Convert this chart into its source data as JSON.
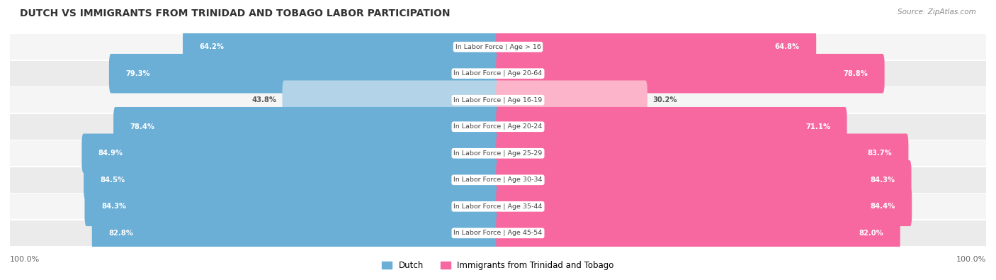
{
  "title": "DUTCH VS IMMIGRANTS FROM TRINIDAD AND TOBAGO LABOR PARTICIPATION",
  "source": "Source: ZipAtlas.com",
  "categories": [
    "In Labor Force | Age > 16",
    "In Labor Force | Age 20-64",
    "In Labor Force | Age 16-19",
    "In Labor Force | Age 20-24",
    "In Labor Force | Age 25-29",
    "In Labor Force | Age 30-34",
    "In Labor Force | Age 35-44",
    "In Labor Force | Age 45-54"
  ],
  "dutch_values": [
    64.2,
    79.3,
    43.8,
    78.4,
    84.9,
    84.5,
    84.3,
    82.8
  ],
  "immigrant_values": [
    64.8,
    78.8,
    30.2,
    71.1,
    83.7,
    84.3,
    84.4,
    82.0
  ],
  "dutch_color": "#6baed6",
  "dutch_color_light": "#b3d4e8",
  "immigrant_color": "#f768a1",
  "immigrant_color_light": "#fbb4c9",
  "row_bg_color": "#f5f5f5",
  "row_bg_alt": "#ebebeb",
  "max_value": 100.0,
  "figsize": [
    14.06,
    3.95
  ],
  "dpi": 100
}
